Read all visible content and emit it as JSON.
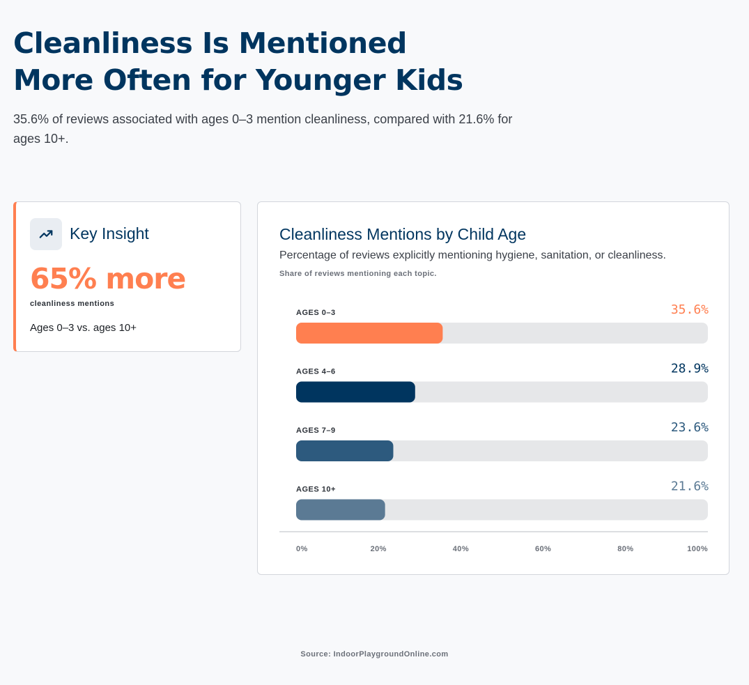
{
  "page": {
    "headline": "Cleanliness Is Mentioned More Often for Younger Kids",
    "subheadline": "35.6% of reviews associated with ages 0–3 mention cleanliness, compared with 21.6% for ages 10+.",
    "source": "Source: IndoorPlaygroundOnline.com"
  },
  "insight": {
    "icon": "trending-up-icon",
    "title": "Key Insight",
    "value": "65% more",
    "metric": "cleanliness mentions",
    "note": "Ages 0–3 vs. ages 10+",
    "accent": "#ff7f50"
  },
  "chart_data": {
    "type": "bar",
    "orientation": "horizontal",
    "title": "Cleanliness Mentions by Child Age",
    "subtitle": "Percentage of reviews explicitly mentioning hygiene, sanitation, or cleanliness.",
    "caption": "Share of reviews mentioning each topic.",
    "categories": [
      "AGES 0–3",
      "AGES 4–6",
      "AGES 7–9",
      "AGES 10+"
    ],
    "values": [
      35.6,
      28.9,
      23.6,
      21.6
    ],
    "value_labels": [
      "35.6%",
      "28.9%",
      "23.6%",
      "21.6%"
    ],
    "colors": [
      "#ff7f50",
      "#00355f",
      "#2d5a7e",
      "#5b7a94"
    ],
    "label_colors": [
      "#ff7f50",
      "#00355f",
      "#2d5a7e",
      "#5b7a94"
    ],
    "track_color": "#e6e7e9",
    "xlim": [
      0,
      100
    ],
    "x_ticks": [
      0,
      20,
      40,
      60,
      80,
      100
    ],
    "x_tick_labels": [
      "0%",
      "20%",
      "40%",
      "60%",
      "80%",
      "100%"
    ],
    "grid": false
  }
}
